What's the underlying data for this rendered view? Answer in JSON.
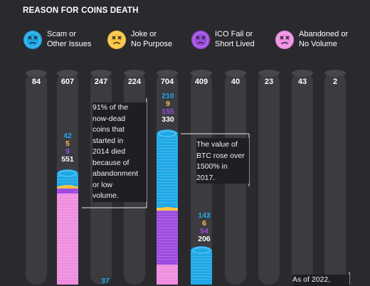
{
  "colors": {
    "scam": "#1ea8e6",
    "joke": "#f7c343",
    "ico": "#9d4be0",
    "abandoned": "#ee8ee0",
    "column": "#3b3b40",
    "cap": "#46464c",
    "background": "#2a2a2e"
  },
  "chart_data": {
    "type": "bar",
    "title": "REASON FOR COINS DEATH",
    "legend_placement": "top",
    "legend": [
      {
        "key": "scam",
        "label": "Scam or\nOther Issues",
        "icon": "scam-face-icon"
      },
      {
        "key": "joke",
        "label": "Joke or\nNo Purpose",
        "icon": "joke-face-icon"
      },
      {
        "key": "ico",
        "label": "ICO Fail or\nShort Lived",
        "icon": "ico-face-icon"
      },
      {
        "key": "abandoned",
        "label": "Abandoned or\nNo Volume",
        "icon": "abandoned-face-icon"
      }
    ],
    "totals": [
      "84",
      "607",
      "247",
      "224",
      "704",
      "409",
      "40",
      "23",
      "43",
      "2"
    ],
    "breakdowns": [
      {
        "column": 1,
        "scam": "42",
        "joke": "5",
        "ico": "9",
        "abandoned": "551"
      },
      {
        "column": 4,
        "scam": "210",
        "joke": "9",
        "ico": "155",
        "abandoned": "330"
      },
      {
        "column": 5,
        "scam": "143",
        "joke": "6",
        "ico": "54",
        "abandoned": "206"
      }
    ],
    "partial_labels": [
      {
        "column": 2,
        "scam": "37"
      }
    ],
    "annotations": [
      {
        "text": "91% of the\nnow-dead\ncoins that\nstarted in\n2014 died\nbecause of\nabandonment\nor low\nvolume."
      },
      {
        "text": "The value of\nBTC rose over\n1500% in\n2017."
      },
      {
        "text": "As of 2022,"
      }
    ]
  }
}
